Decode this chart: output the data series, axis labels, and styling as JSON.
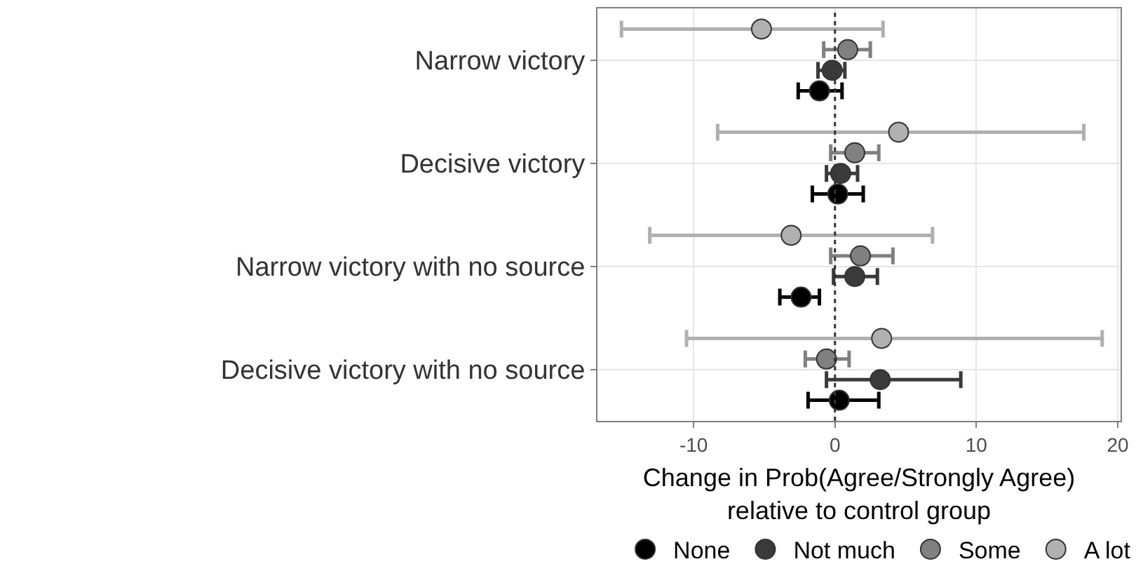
{
  "chart_data": {
    "type": "scatter",
    "orientation": "horizontal",
    "xlabel": "Change in Prob(Agree/Strongly Agree)\nrelative to control group",
    "categories": [
      "Narrow victory",
      "Decisive victory",
      "Narrow victory with no source",
      "Decisive victory with no source"
    ],
    "series": [
      {
        "name": "None",
        "color": "#000000",
        "values": [
          -1.1,
          0.2,
          -2.4,
          0.3
        ],
        "errors": [
          [
            -2.6,
            0.5
          ],
          [
            -1.6,
            2.0
          ],
          [
            -3.9,
            -1.1
          ],
          [
            -1.9,
            3.1
          ]
        ]
      },
      {
        "name": "Not much",
        "color": "#3a3a3a",
        "values": [
          -0.2,
          0.4,
          1.4,
          3.2
        ],
        "errors": [
          [
            -1.2,
            0.7
          ],
          [
            -0.6,
            1.6
          ],
          [
            -0.1,
            3.0
          ],
          [
            -0.6,
            8.9
          ]
        ]
      },
      {
        "name": "Some",
        "color": "#808080",
        "values": [
          0.9,
          1.4,
          1.8,
          -0.6
        ],
        "errors": [
          [
            -0.8,
            2.5
          ],
          [
            -0.3,
            3.1
          ],
          [
            -0.3,
            4.1
          ],
          [
            -2.1,
            1.0
          ]
        ]
      },
      {
        "name": "A lot",
        "color": "#b0b0b0",
        "values": [
          -5.2,
          4.5,
          -3.1,
          3.3
        ],
        "errors": [
          [
            -15.1,
            3.4
          ],
          [
            -8.3,
            17.6
          ],
          [
            -13.1,
            6.9
          ],
          [
            -10.5,
            18.9
          ]
        ]
      }
    ],
    "xlim": [
      -16.8,
      20.2
    ],
    "xticks": [
      -10,
      0,
      10,
      20
    ],
    "grid": true,
    "legend": "bottom",
    "marker": "circle",
    "ref_lines": [
      {
        "axis": "x",
        "value": 0,
        "line_style": "dotted",
        "color": "#333333"
      }
    ]
  }
}
